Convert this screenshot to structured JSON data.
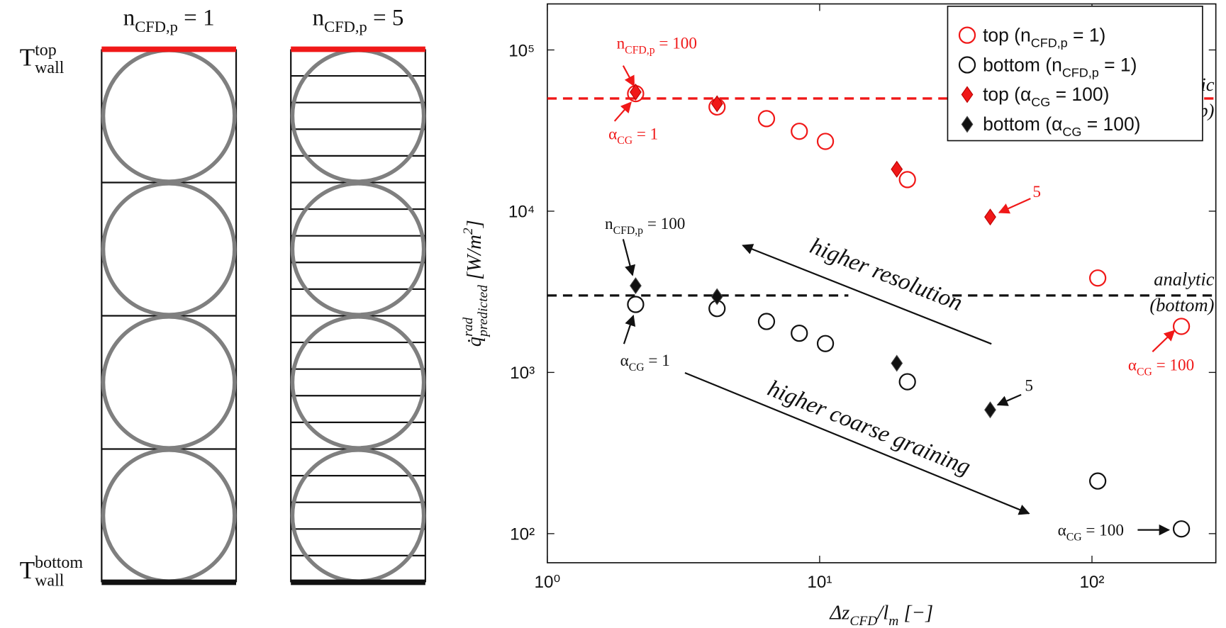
{
  "diagram": {
    "panels": [
      {
        "title": [
          "n",
          {
            "sub": "CFD,p"
          },
          " = "
        ],
        "n": 1
      },
      {
        "title": [
          "n",
          {
            "sub": "CFD,p"
          },
          " = "
        ],
        "n": 5
      }
    ],
    "wall_labels": {
      "top": [
        "T",
        {
          "sup": "top"
        },
        {
          "sub": "wall"
        }
      ],
      "bottom": [
        "T",
        {
          "sup": "bottom"
        },
        {
          "sub": "wall"
        }
      ]
    }
  },
  "chart_data": {
    "type": "scatter",
    "xlog": true,
    "ylog": true,
    "xlabel": [
      "Δz",
      {
        "sub": "CFD"
      },
      "/l",
      {
        "sub": "m"
      },
      " [−]"
    ],
    "ylabel": [
      "q̇",
      {
        "sup": "rad"
      },
      {
        "sub": "predicted"
      },
      " [W/m",
      {
        "sup": "2"
      },
      "]"
    ],
    "xlim": [
      1,
      285
    ],
    "ylim": [
      66,
      193000
    ],
    "xticks": [
      {
        "value": 1,
        "label": "10⁰"
      },
      {
        "value": 10,
        "label": "10¹"
      },
      {
        "value": 100,
        "label": "10²"
      }
    ],
    "yticks": [
      {
        "value": 100,
        "label": "10²"
      },
      {
        "value": 1000,
        "label": "10³"
      },
      {
        "value": 10000,
        "label": "10⁴"
      },
      {
        "value": 100000,
        "label": "10⁵"
      }
    ],
    "legend": "upper right",
    "series": [
      {
        "name": [
          "top (",
          "n",
          {
            "sub": "CFD,p"
          },
          " = 1)"
        ],
        "color": "#f01818",
        "marker": "circle",
        "filled": false,
        "x": [
          2.11,
          4.2,
          6.38,
          8.42,
          10.5,
          21,
          105,
          213
        ],
        "values": [
          53600,
          44300,
          37500,
          31300,
          27100,
          15700,
          3850,
          1930
        ]
      },
      {
        "name": [
          "bottom (",
          "n",
          {
            "sub": "CFD,p"
          },
          " = 1)"
        ],
        "color": "#111111",
        "marker": "circle",
        "filled": false,
        "x": [
          2.11,
          4.2,
          6.38,
          8.42,
          10.5,
          21,
          105,
          213
        ],
        "values": [
          2640,
          2490,
          2070,
          1750,
          1510,
          875,
          212,
          107
        ]
      },
      {
        "name": [
          "top (",
          "α",
          {
            "sub": "CG"
          },
          " = 100)"
        ],
        "color": "#f01818",
        "marker": "diamond",
        "filled": true,
        "x": [
          2.11,
          4.2,
          19.2,
          42.3
        ],
        "values": [
          54800,
          46400,
          18200,
          9200
        ]
      },
      {
        "name": [
          "bottom (",
          "α",
          {
            "sub": "CG"
          },
          " = 100)"
        ],
        "color": "#111111",
        "marker": "diamond",
        "filled": true,
        "x": [
          2.11,
          4.2,
          19.2,
          42.3
        ],
        "values": [
          3450,
          2950,
          1140,
          586
        ]
      }
    ],
    "reference_lines": [
      {
        "value": 50000,
        "color": "#f01818",
        "labels": [
          "analytic",
          "(top)"
        ]
      },
      {
        "value": 3000,
        "color": "#111111",
        "labels": [
          "analytic",
          "(bottom)"
        ]
      }
    ],
    "annotations": [
      {
        "text": [
          "n",
          {
            "sub": "CFD,p"
          },
          " = 100"
        ],
        "color": "#f01818"
      },
      {
        "text": [
          "α",
          {
            "sub": "CG"
          },
          " = 1"
        ],
        "color": "#f01818"
      },
      {
        "text": [
          "n",
          {
            "sub": "CFD,p"
          },
          " = 100"
        ],
        "color": "#111111"
      },
      {
        "text": [
          "α",
          {
            "sub": "CG"
          },
          " = 1"
        ],
        "color": "#111111"
      },
      {
        "text": [
          "5"
        ],
        "color": "#f01818"
      },
      {
        "text": [
          "5"
        ],
        "color": "#111111"
      },
      {
        "text": [
          "α",
          {
            "sub": "CG"
          },
          " = 100"
        ],
        "color": "#f01818"
      },
      {
        "text": [
          "α",
          {
            "sub": "CG"
          },
          " = 100"
        ],
        "color": "#111111"
      },
      {
        "text": [
          "higher resolution"
        ],
        "color": "#111111"
      },
      {
        "text": [
          "higher coarse graining"
        ],
        "color": "#111111"
      }
    ]
  }
}
